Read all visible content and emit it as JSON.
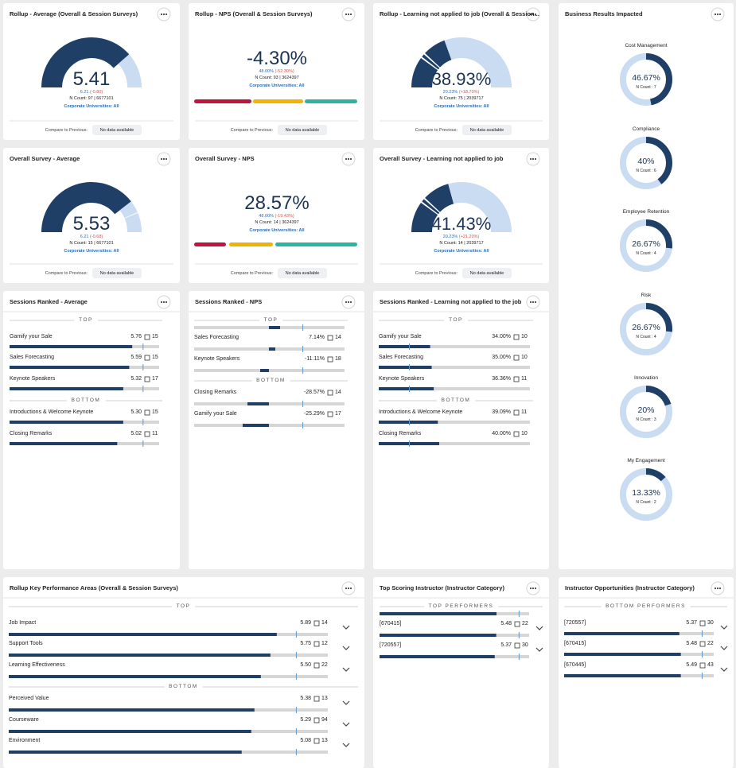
{
  "gauges": [
    {
      "title": "Rollup - Average (Overall & Session Surveys)",
      "value": "5.41",
      "previous": "6.21",
      "change": "(-0.80)",
      "ncount": "N Count: 97  |  6677101",
      "filter": "Corporate Universities: All",
      "compare_label": "Compare to Previous:",
      "compare_value": "No data available"
    },
    {
      "title": "Rollup - NPS (Overall & Session Surveys)",
      "value": "-4.30%",
      "previous": "48.00%",
      "change": "(-52.30%)",
      "ncount": "N Count: 93  |  3624397",
      "filter": "Corporate Universities: All",
      "compare_label": "Compare to Previous:",
      "compare_value": "No data available"
    },
    {
      "title": "Rollup - Learning not applied to job (Overall & Session...",
      "value": 38.93,
      "value_label": "38.93%",
      "previous": "20.23%",
      "change": "(+18.70%)",
      "ncount": "N Count: 75  |  2039717",
      "filter": "Corporate Universities: All",
      "compare_label": "Compare to Previous:",
      "compare_value": "No data available"
    },
    {
      "title": "Overall Survey - Average",
      "value": "5.53",
      "previous": "6.21",
      "change": "(-0.68)",
      "ncount": "N Count: 15  |  6677101",
      "filter": "Corporate Universities: All",
      "compare_label": "Compare to Previous:",
      "compare_value": "No data available"
    },
    {
      "title": "Overall Survey - NPS",
      "value": "28.57%",
      "previous": "48.00%",
      "change": "(-19.43%)",
      "ncount": "N Count: 14  |  3624397",
      "filter": "Corporate Universities: All",
      "compare_label": "Compare to Previous:",
      "compare_value": "No data available"
    },
    {
      "title": "Overall Survey - Learning not applied to job",
      "value": 41.43,
      "value_label": "41.43%",
      "previous": "20.23%",
      "change": "(+21.20%)",
      "ncount": "N Count: 14  |  2039717",
      "filter": "Corporate Universities: All",
      "compare_label": "Compare to Previous:",
      "compare_value": "No data available"
    }
  ],
  "business": {
    "title": "Business Results Impacted",
    "items": [
      {
        "name": "Cost Management",
        "value": 46.67,
        "value_label": "46.67%",
        "ncount": "N Count : 7"
      },
      {
        "name": "Compliance",
        "value": 40,
        "value_label": "40%",
        "ncount": "N Count : 6"
      },
      {
        "name": "Employee Retention",
        "value": 26.67,
        "value_label": "26.67%",
        "ncount": "N Count : 4"
      },
      {
        "name": "Risk",
        "value": 26.67,
        "value_label": "26.67%",
        "ncount": "N Count : 4"
      },
      {
        "name": "Innovation",
        "value": 20,
        "value_label": "20%",
        "ncount": "N Count : 3"
      },
      {
        "name": "My Engagement",
        "value": 13.33,
        "value_label": "13.33%",
        "ncount": "N Count : 2"
      }
    ]
  },
  "lists": [
    {
      "title": "Sessions Ranked - Average",
      "sections": [
        {
          "label": "TOP",
          "rows": [
            {
              "name": "Gamify your Sale",
              "value": "5.76",
              "count": "15"
            },
            {
              "name": "Sales Forecasting",
              "value": "5.59",
              "count": "15"
            },
            {
              "name": "Keynote Speakers",
              "value": "5.32",
              "count": "17"
            }
          ]
        },
        {
          "label": "BOTTOM",
          "rows": [
            {
              "name": "Introductions & Welcome Keynote",
              "value": "5.30",
              "count": "15"
            },
            {
              "name": "Closing Remarks",
              "value": "5.02",
              "count": "11"
            }
          ]
        }
      ]
    },
    {
      "title": "Sessions Ranked - NPS",
      "sections": [
        {
          "label": "TOP",
          "rows": [
            {
              "name": "Sales Forecasting",
              "value": "7.14%",
              "count": "14"
            },
            {
              "name": "Keynote Speakers",
              "value": "-11.11%",
              "count": "18"
            }
          ]
        },
        {
          "label": "BOTTOM",
          "rows": [
            {
              "name": "Closing Remarks",
              "value": "-28.57%",
              "count": "14"
            },
            {
              "name": "Gamify your Sale",
              "value": "-25.29%",
              "count": "17"
            }
          ]
        }
      ]
    },
    {
      "title": "Sessions Ranked - Learning not applied to the job",
      "sections": [
        {
          "label": "TOP",
          "rows": [
            {
              "name": "Gamify your Sale",
              "value": 34,
              "value_label": "34.00%",
              "count": "10"
            },
            {
              "name": "Sales Forecasting",
              "value": 35,
              "value_label": "35.00%",
              "count": "10"
            },
            {
              "name": "Keynote Speakers",
              "value": 36.36,
              "value_label": "36.36%",
              "count": "11"
            }
          ]
        },
        {
          "label": "BOTTOM",
          "rows": [
            {
              "name": "Introductions & Welcome Keynote",
              "value": 39.09,
              "value_label": "39.09%",
              "count": "11"
            },
            {
              "name": "Closing Remarks",
              "value": 40,
              "value_label": "40.00%",
              "count": "10"
            }
          ]
        }
      ]
    },
    {
      "title": "Rollup Key Performance Areas (Overall & Session Surveys)",
      "sections": [
        {
          "label": "TOP",
          "rows": [
            {
              "name": "Job Impact",
              "value": "5.89",
              "count": "14"
            },
            {
              "name": "Support Tools",
              "value": "5.75",
              "count": "12"
            },
            {
              "name": "Learning Effectiveness",
              "value": "5.50",
              "count": "22"
            }
          ]
        },
        {
          "label": "BOTTOM",
          "rows": [
            {
              "name": "Perceived Value",
              "value": "5.38",
              "count": "13"
            },
            {
              "name": "Courseware",
              "value": "5.29",
              "count": "94"
            },
            {
              "name": "Environment",
              "value": "5.08",
              "count": "13"
            }
          ]
        }
      ]
    },
    {
      "title": "Top Scoring Instructor (Instructor Category)",
      "sections": [
        {
          "label": "TOP PERFORMERS",
          "rows": [
            {
              "name": "[670415]",
              "value": "5.48",
              "count": "22"
            },
            {
              "name": "[720557]",
              "value": "5.37",
              "count": "30"
            }
          ]
        }
      ]
    },
    {
      "title": "Instructor Opportunities (Instructor Category)",
      "sections": [
        {
          "label": "BOTTOM PERFORMERS",
          "rows": [
            {
              "name": "[720557]",
              "value": "5.37",
              "count": "30"
            },
            {
              "name": "[670415]",
              "value": "5.48",
              "count": "22"
            },
            {
              "name": "[670445]",
              "value": "5.49",
              "count": "43"
            }
          ]
        }
      ]
    }
  ]
}
